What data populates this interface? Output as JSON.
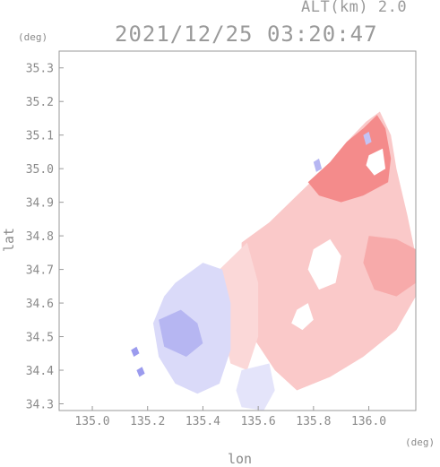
{
  "title": "2021/12/25 03:20:47",
  "altitude_label": "ALT(km) 2.0",
  "y_unit": "(deg)",
  "x_unit": "(deg)",
  "x_axis_label": "lon",
  "y_axis_label": "lat",
  "colors": {
    "axis": "#9a9a9a",
    "positive": "#f06464",
    "negative": "#7a7ae8"
  },
  "chart_data": {
    "type": "heatmap",
    "xlim": [
      134.88,
      136.17
    ],
    "ylim": [
      34.28,
      35.35
    ],
    "x_ticks": [
      {
        "value": 135.0,
        "label": "135.0"
      },
      {
        "value": 135.2,
        "label": "135.2"
      },
      {
        "value": 135.4,
        "label": "135.4"
      },
      {
        "value": 135.6,
        "label": "135.6"
      },
      {
        "value": 135.8,
        "label": "135.8"
      },
      {
        "value": 136.0,
        "label": "136.0"
      }
    ],
    "y_ticks": [
      {
        "value": 34.3,
        "label": "34.3"
      },
      {
        "value": 34.4,
        "label": "34.4"
      },
      {
        "value": 34.5,
        "label": "34.5"
      },
      {
        "value": 34.6,
        "label": "34.6"
      },
      {
        "value": 34.7,
        "label": "34.7"
      },
      {
        "value": 34.8,
        "label": "34.8"
      },
      {
        "value": 34.9,
        "label": "34.9"
      },
      {
        "value": 35.0,
        "label": "35.0"
      },
      {
        "value": 35.1,
        "label": "35.1"
      },
      {
        "value": 35.2,
        "label": "35.2"
      },
      {
        "value": 35.3,
        "label": "35.3"
      }
    ],
    "regions": [
      {
        "sign": "positive",
        "strength": 0.35,
        "points": [
          [
            135.54,
            34.78
          ],
          [
            135.64,
            34.84
          ],
          [
            135.74,
            34.92
          ],
          [
            135.84,
            35.0
          ],
          [
            135.92,
            35.08
          ],
          [
            135.99,
            35.14
          ],
          [
            136.04,
            35.17
          ],
          [
            136.08,
            35.1
          ],
          [
            136.1,
            35.0
          ],
          [
            136.14,
            34.86
          ],
          [
            136.17,
            34.74
          ],
          [
            136.17,
            34.62
          ],
          [
            136.1,
            34.52
          ],
          [
            135.98,
            34.44
          ],
          [
            135.86,
            34.38
          ],
          [
            135.74,
            34.34
          ],
          [
            135.66,
            34.4
          ],
          [
            135.58,
            34.5
          ],
          [
            135.54,
            34.62
          ]
        ]
      },
      {
        "sign": "positive",
        "strength": 0.75,
        "points": [
          [
            135.78,
            34.96
          ],
          [
            135.86,
            35.02
          ],
          [
            135.92,
            35.08
          ],
          [
            135.98,
            35.12
          ],
          [
            136.03,
            35.16
          ],
          [
            136.06,
            35.12
          ],
          [
            136.08,
            35.03
          ],
          [
            136.07,
            34.96
          ],
          [
            135.98,
            34.92
          ],
          [
            135.9,
            34.9
          ],
          [
            135.82,
            34.92
          ]
        ]
      },
      {
        "sign": "positive",
        "strength": 0.55,
        "points": [
          [
            136.0,
            34.8
          ],
          [
            136.1,
            34.79
          ],
          [
            136.17,
            34.76
          ],
          [
            136.17,
            34.66
          ],
          [
            136.1,
            34.62
          ],
          [
            136.02,
            34.64
          ],
          [
            135.98,
            34.72
          ]
        ]
      },
      {
        "sign": "positive",
        "strength": 0.25,
        "points": [
          [
            135.46,
            34.7
          ],
          [
            135.56,
            34.78
          ],
          [
            135.6,
            34.66
          ],
          [
            135.6,
            34.5
          ],
          [
            135.56,
            34.4
          ],
          [
            135.5,
            34.42
          ],
          [
            135.46,
            34.56
          ]
        ]
      },
      {
        "sign": "negative",
        "strength": 0.28,
        "points": [
          [
            135.3,
            34.66
          ],
          [
            135.4,
            34.72
          ],
          [
            135.47,
            34.7
          ],
          [
            135.5,
            34.6
          ],
          [
            135.5,
            34.46
          ],
          [
            135.46,
            34.36
          ],
          [
            135.38,
            34.33
          ],
          [
            135.3,
            34.36
          ],
          [
            135.24,
            34.44
          ],
          [
            135.22,
            34.54
          ],
          [
            135.26,
            34.62
          ]
        ]
      },
      {
        "sign": "negative",
        "strength": 0.55,
        "points": [
          [
            135.24,
            34.55
          ],
          [
            135.32,
            34.58
          ],
          [
            135.38,
            34.54
          ],
          [
            135.4,
            34.48
          ],
          [
            135.34,
            34.44
          ],
          [
            135.26,
            34.47
          ]
        ]
      },
      {
        "sign": "negative",
        "strength": 0.2,
        "points": [
          [
            135.54,
            34.4
          ],
          [
            135.64,
            34.42
          ],
          [
            135.66,
            34.34
          ],
          [
            135.62,
            34.28
          ],
          [
            135.54,
            34.29
          ],
          [
            135.52,
            34.34
          ]
        ]
      },
      {
        "sign": "negative",
        "strength": 0.75,
        "points": [
          [
            135.14,
            34.46
          ],
          [
            135.16,
            34.47
          ],
          [
            135.17,
            34.45
          ],
          [
            135.15,
            34.44
          ]
        ]
      },
      {
        "sign": "negative",
        "strength": 0.75,
        "points": [
          [
            135.16,
            34.4
          ],
          [
            135.18,
            34.41
          ],
          [
            135.19,
            34.39
          ],
          [
            135.17,
            34.38
          ]
        ]
      },
      {
        "sign": "negative",
        "strength": 0.55,
        "points": [
          [
            135.8,
            35.02
          ],
          [
            135.82,
            35.03
          ],
          [
            135.83,
            35.0
          ],
          [
            135.81,
            34.99
          ]
        ]
      },
      {
        "sign": "negative",
        "strength": 0.45,
        "points": [
          [
            135.98,
            35.1
          ],
          [
            136.0,
            35.11
          ],
          [
            136.01,
            35.08
          ],
          [
            135.99,
            35.07
          ]
        ]
      }
    ],
    "gaps": [
      {
        "points": [
          [
            135.8,
            34.76
          ],
          [
            135.86,
            34.79
          ],
          [
            135.9,
            34.74
          ],
          [
            135.88,
            34.66
          ],
          [
            135.82,
            34.64
          ],
          [
            135.78,
            34.7
          ]
        ]
      },
      {
        "points": [
          [
            135.74,
            34.58
          ],
          [
            135.78,
            34.6
          ],
          [
            135.8,
            34.55
          ],
          [
            135.76,
            34.52
          ],
          [
            135.72,
            34.54
          ]
        ]
      },
      {
        "points": [
          [
            136.0,
            35.04
          ],
          [
            136.05,
            35.06
          ],
          [
            136.06,
            35.0
          ],
          [
            136.02,
            34.98
          ],
          [
            135.99,
            35.01
          ]
        ]
      }
    ]
  }
}
